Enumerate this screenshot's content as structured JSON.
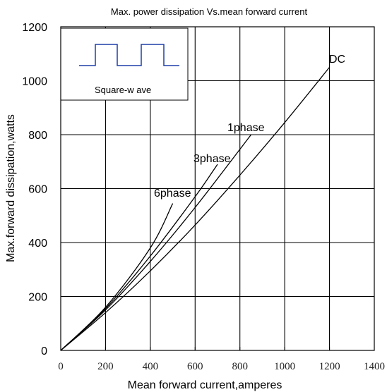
{
  "chart_data": {
    "type": "line",
    "title": "Max. power dissipation Vs.mean forward current",
    "xlabel": "Mean forward current,amperes",
    "ylabel": "Max.forward dissipation,watts",
    "xlim": [
      0,
      1400
    ],
    "ylim": [
      0,
      1200
    ],
    "x_ticks": [
      0,
      200,
      400,
      600,
      800,
      1000,
      1200,
      1400
    ],
    "y_ticks": [
      0,
      200,
      400,
      600,
      800,
      1000,
      1200
    ],
    "grid": true,
    "inset_label": "Square-w ave",
    "series": [
      {
        "name": "DC",
        "color": "#000000",
        "x": [
          0,
          200,
          400,
          600,
          800,
          1000,
          1200
        ],
        "y": [
          0,
          140,
          295,
          465,
          650,
          845,
          1050
        ]
      },
      {
        "name": "1phase",
        "color": "#000000",
        "x": [
          0,
          200,
          400,
          600,
          850
        ],
        "y": [
          0,
          150,
          330,
          530,
          800
        ]
      },
      {
        "name": "3phase",
        "color": "#000000",
        "x": [
          0,
          200,
          400,
          600,
          700
        ],
        "y": [
          0,
          155,
          350,
          570,
          690
        ]
      },
      {
        "name": "6phase",
        "color": "#000000",
        "x": [
          0,
          200,
          400,
          500
        ],
        "y": [
          0,
          160,
          380,
          545
        ]
      }
    ]
  }
}
